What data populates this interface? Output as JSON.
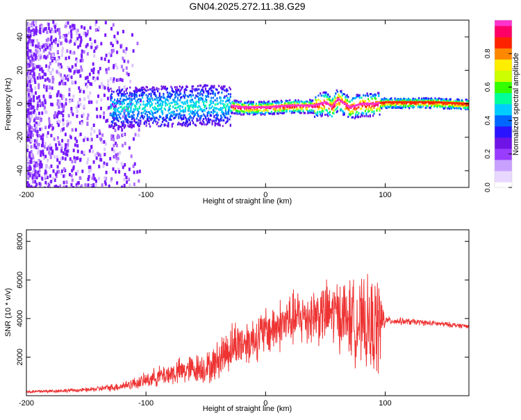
{
  "title": "GN04.2025.272.11.38.G29",
  "colors": {
    "line": "#ee3333",
    "axis": "#000000",
    "colormap": [
      "#ffffff",
      "#e8d8ff",
      "#c8a0ff",
      "#9a3cff",
      "#6f14e6",
      "#2a14ff",
      "#0066ff",
      "#00ccff",
      "#00ff99",
      "#33ff00",
      "#ccff00",
      "#ffee00",
      "#ff8800",
      "#ff2200",
      "#ff0066",
      "#ff33cc"
    ]
  },
  "chart_data": [
    {
      "type": "heatmap",
      "title": "GN04.2025.272.11.38.G29",
      "xlabel": "Height of straight line (km)",
      "ylabel": "Frequency (Hz)",
      "xlim": [
        -200,
        170
      ],
      "ylim": [
        -50,
        50
      ],
      "x_ticks": [
        -200,
        -100,
        0,
        100
      ],
      "y_ticks": [
        -40,
        -20,
        0,
        20,
        40
      ],
      "colorbar": {
        "label": "Normalized spectral amplitude",
        "range": [
          0,
          1
        ],
        "ticks": [
          0.0,
          0.2,
          0.4,
          0.6,
          0.8
        ]
      },
      "ridge": {
        "x": [
          -125,
          -100,
          -70,
          -50,
          -30,
          -20,
          0,
          20,
          40,
          50,
          55,
          60,
          70,
          80,
          90,
          100,
          120,
          140,
          170
        ],
        "y": [
          -2,
          -1,
          -1,
          0,
          -1,
          -2,
          -2,
          -1,
          -1,
          1,
          -2,
          3,
          -2,
          0,
          0,
          1,
          1,
          1,
          0
        ]
      }
    },
    {
      "type": "line",
      "xlabel": "Height of straight line (km)",
      "ylabel": "SNR (10 * v/v)",
      "xlim": [
        -200,
        170
      ],
      "ylim": [
        0,
        8600
      ],
      "x_ticks": [
        -200,
        -100,
        0,
        100
      ],
      "y_ticks": [
        2000,
        4000,
        6000,
        8000
      ],
      "envelope": {
        "x": [
          -200,
          -150,
          -125,
          -105,
          -90,
          -75,
          -60,
          -45,
          -35,
          -25,
          -15,
          0,
          20,
          40,
          60,
          70,
          80,
          90,
          95,
          100,
          130,
          170
        ],
        "mean": [
          200,
          300,
          450,
          700,
          1000,
          1200,
          1400,
          1500,
          2200,
          2700,
          2800,
          3300,
          3900,
          4200,
          4300,
          4000,
          3700,
          3500,
          3700,
          3900,
          3800,
          3600
        ],
        "amplitude": [
          100,
          120,
          250,
          400,
          600,
          800,
          900,
          1000,
          1400,
          1500,
          1400,
          1500,
          1700,
          1800,
          2100,
          2400,
          2600,
          3000,
          3200,
          250,
          180,
          150
        ]
      }
    }
  ]
}
